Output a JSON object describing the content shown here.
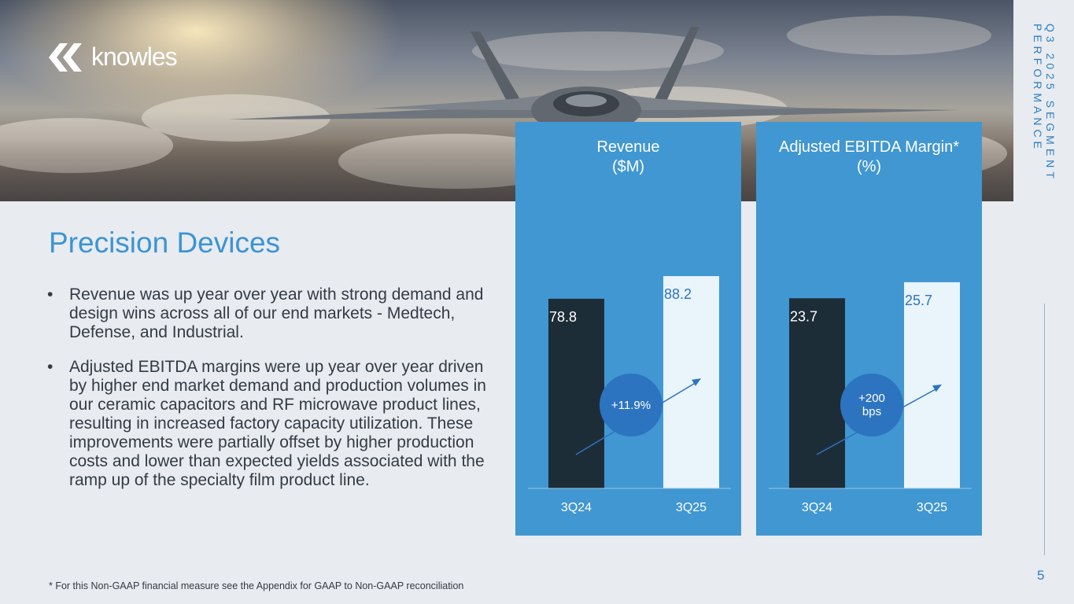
{
  "brand": {
    "name": "knowles"
  },
  "side_title": "Q3 2025 SEGMENT PERFORMANCE",
  "page_number": "5",
  "heading": "Precision Devices",
  "bullets": [
    "Revenue was up year over year with strong demand and design wins across all of our end markets - Medtech, Defense, and Industrial.",
    "Adjusted EBITDA margins were up year over year driven by higher end market demand and production volumes in our ceramic capacitors and RF microwave product lines, resulting in increased factory capacity utilization. These improvements were partially offset by higher production costs and lower than expected yields associated with the ramp up of the specialty film product line."
  ],
  "bullet_glyph": "•",
  "footnote": "* For this Non-GAAP financial measure see the Appendix for GAAP to Non-GAAP reconciliation",
  "colors": {
    "accent": "#3c94d3",
    "panel": "#4197d1",
    "bar_prior": "#1d2d38",
    "bar_current": "#e9f4fb",
    "badge": "#2d74c0"
  },
  "chart_data": [
    {
      "type": "bar",
      "title": "Revenue\n($M)",
      "categories": [
        "3Q24",
        "3Q25"
      ],
      "values": [
        78.8,
        88.2
      ],
      "value_labels": [
        "78.8",
        "88.2"
      ],
      "change_label": "+11.9%",
      "ylim": [
        0,
        100
      ],
      "grid": false
    },
    {
      "type": "bar",
      "title": "Adjusted EBITDA Margin*\n(%)",
      "categories": [
        "3Q24",
        "3Q25"
      ],
      "values": [
        23.7,
        25.7
      ],
      "value_labels": [
        "23.7",
        "25.7"
      ],
      "change_label": "+200\nbps",
      "ylim": [
        0,
        30
      ],
      "grid": false
    }
  ]
}
